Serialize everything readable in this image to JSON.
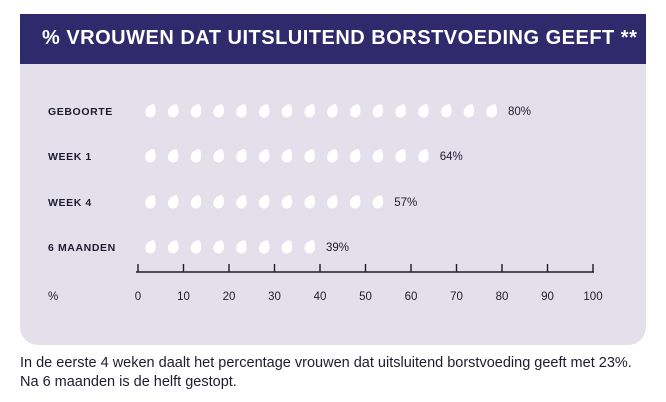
{
  "title": "% vrouwen dat uitsluitend borstvoeding geeft **",
  "caption": "In de eerste 4 weken daalt het percentage vrouwen dat uitsluitend borstvoeding geeft met 23%. Na 6 maanden is de helft gestopt.",
  "colors": {
    "header_bg": "#2f2a6b",
    "panel_bg": "#e3e0ec",
    "drop": "#ffffff",
    "text": "#1c1c2e"
  },
  "icon": "drop-icon",
  "chart_data": {
    "type": "bar",
    "categories": [
      "GEBOORTE",
      "WEEK 1",
      "WEEK 4",
      "6 MAANDEN"
    ],
    "values": [
      80,
      64,
      57,
      39
    ],
    "value_labels": [
      "80%",
      "64%",
      "57%",
      "39%"
    ],
    "unit_per_icon": 5,
    "xlabel": "%",
    "xlim": [
      0,
      100
    ],
    "xticks": [
      0,
      10,
      20,
      30,
      40,
      50,
      60,
      70,
      80,
      90,
      100
    ],
    "grid": false,
    "legend": "none"
  }
}
